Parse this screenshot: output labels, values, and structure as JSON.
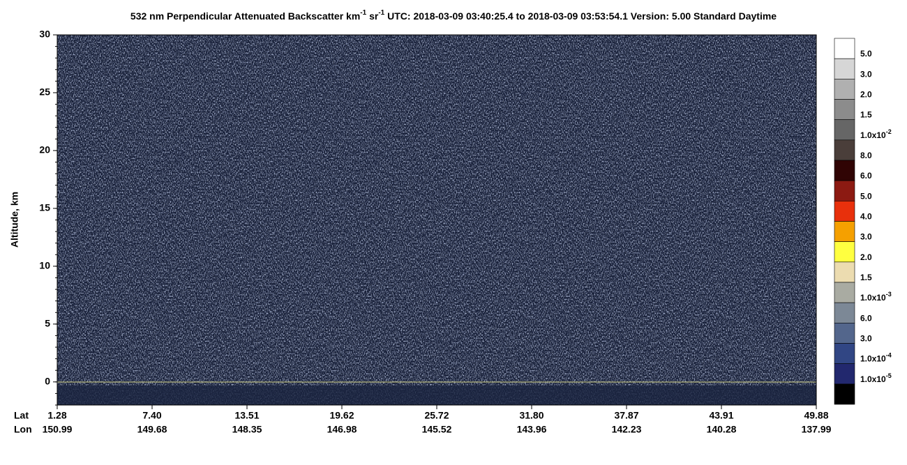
{
  "chart_data": {
    "type": "curtain",
    "title": [
      "532 nm Perpendicular Attenuated Backscatter km",
      "-1",
      " sr",
      "-1",
      "  UTC: 2018-03-09 03:40:25.4 to 2018-03-09 03:53:54.1  Version: 5.00 Standard Daytime"
    ],
    "ylabel": "Altitude, km",
    "ylim": [
      -2,
      30
    ],
    "yticks": [
      0,
      5,
      10,
      15,
      20,
      25,
      30
    ],
    "x_rows": [
      {
        "name": "Lat",
        "labels": [
          "1.28",
          "7.40",
          "13.51",
          "19.62",
          "25.72",
          "31.80",
          "37.87",
          "43.91",
          "49.88"
        ]
      },
      {
        "name": "Lon",
        "labels": [
          "150.99",
          "149.68",
          "148.35",
          "146.98",
          "145.52",
          "143.96",
          "142.23",
          "140.28",
          "137.99"
        ]
      }
    ],
    "colorbar": {
      "colors": [
        "#ffffff",
        "#d6d6d6",
        "#b0b0b0",
        "#8c8c8c",
        "#666666",
        "#4a3e3a",
        "#300404",
        "#8c1a12",
        "#e8300c",
        "#f5a000",
        "#ffff40",
        "#ecdcb0",
        "#a9aba2",
        "#7c8896",
        "#53668c",
        "#314684",
        "#22286e",
        "#000000"
      ],
      "labels": [
        [
          "5.0"
        ],
        [
          "3.0"
        ],
        [
          "2.0"
        ],
        [
          "1.5"
        ],
        [
          "1.0x10",
          "-2"
        ],
        [
          "8.0"
        ],
        [
          "6.0"
        ],
        [
          "5.0"
        ],
        [
          "4.0"
        ],
        [
          "3.0"
        ],
        [
          "2.0"
        ],
        [
          "1.5"
        ],
        [
          "1.0x10",
          "-3"
        ],
        [
          "6.0"
        ],
        [
          "3.0"
        ],
        [
          "1.0x10",
          "-4"
        ],
        [
          "1.0x10",
          "-5"
        ]
      ]
    }
  }
}
